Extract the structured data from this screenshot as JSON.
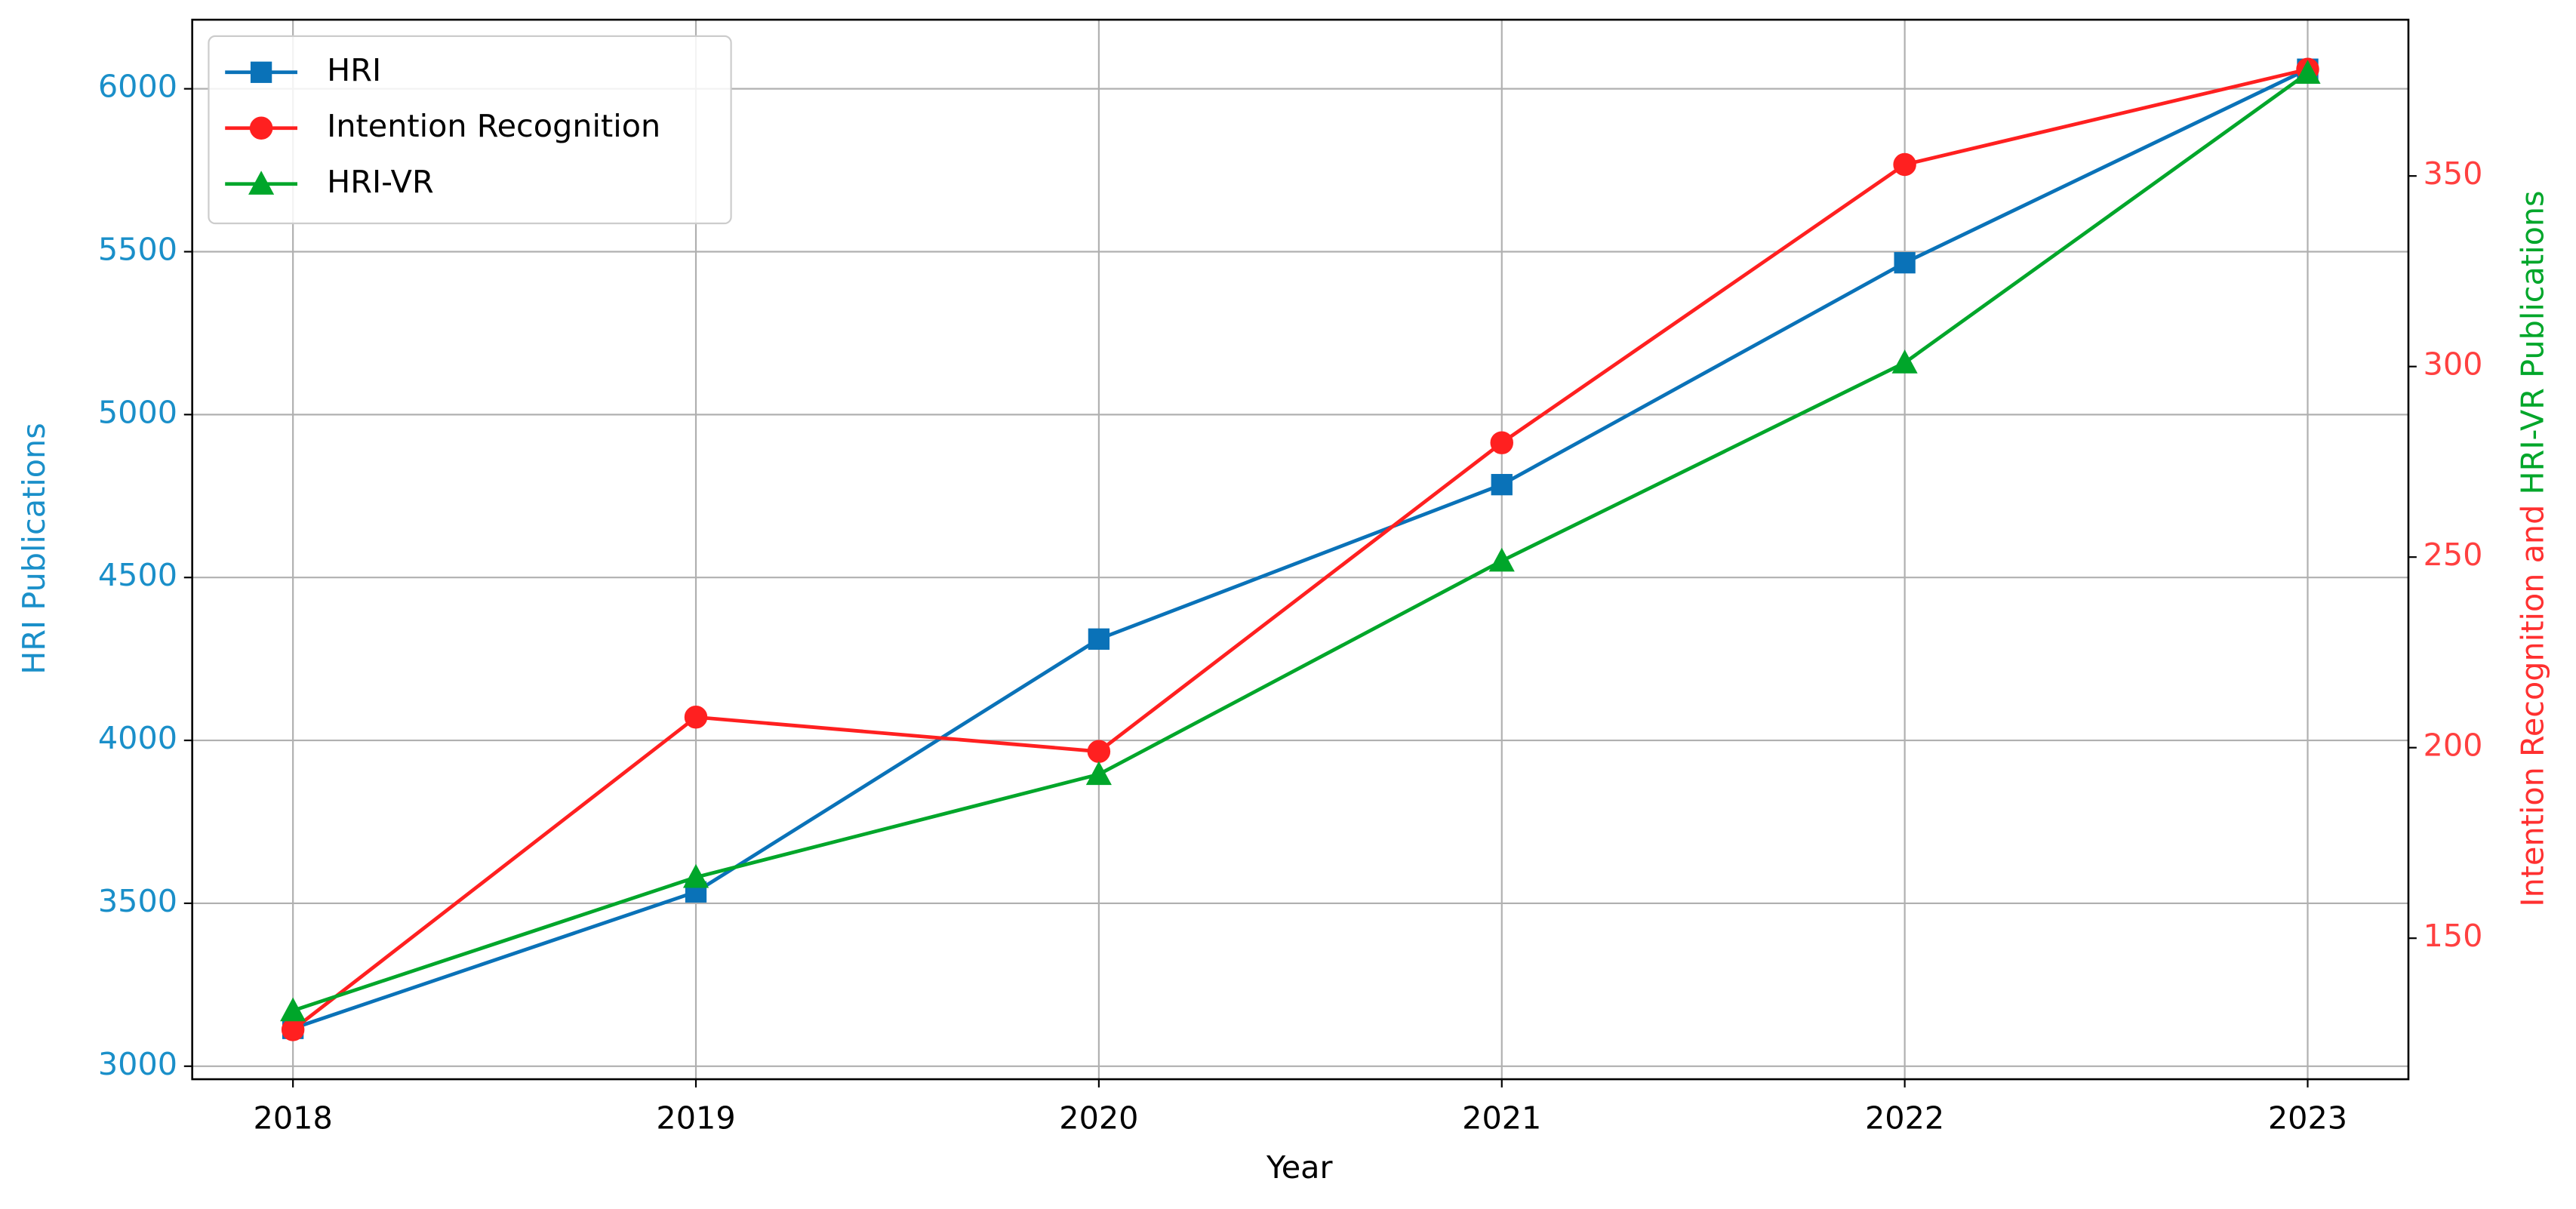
{
  "chart_data": {
    "type": "line",
    "x": [
      2018,
      2019,
      2020,
      2021,
      2022,
      2023
    ],
    "xlim": [
      2017.75,
      2023.25
    ],
    "xticks": [
      2018,
      2019,
      2020,
      2021,
      2022,
      2023
    ],
    "xlabel": "Year",
    "ylabel": "HRI Publications",
    "ylabel_color": "#1a8fc9",
    "ylim": [
      2960,
      6212
    ],
    "yticks": [
      3000,
      3500,
      4000,
      4500,
      5000,
      5500,
      6000
    ],
    "ytick_color": "#1a8fc9",
    "y2label_parts": [
      {
        "text": "Intention Recognition and",
        "color": "#ff3030"
      },
      {
        "text": "HRI-VR Publications",
        "color": "#00a62a"
      }
    ],
    "y2lim": [
      113,
      391
    ],
    "y2ticks": [
      150,
      200,
      250,
      300,
      350
    ],
    "y2tick_color": "#ff4040",
    "grid": true,
    "legend": "upper-left",
    "series": [
      {
        "name": "HRI",
        "color": "#0a72b8",
        "marker": "square",
        "values": [
          3116,
          3535,
          4311,
          4785,
          5466,
          6060
        ]
      },
      {
        "name": "Intention Recognition",
        "color": "#ff2020",
        "marker": "circle",
        "axis": "y2",
        "values": [
          126,
          208,
          199,
          280,
          353,
          378
        ]
      },
      {
        "name": "HRI-VR",
        "color": "#00a62a",
        "marker": "triangle",
        "axis": "y2",
        "values": [
          131,
          166,
          193,
          249,
          301,
          377
        ]
      }
    ]
  }
}
